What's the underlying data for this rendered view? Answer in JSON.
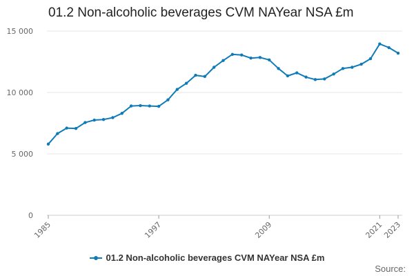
{
  "chart_data": {
    "type": "line",
    "title": "01.2 Non-alcoholic beverages CVM NAYear NSA £m",
    "xlabel": "",
    "ylabel": "",
    "ylim": [
      0,
      15000
    ],
    "yticks": [
      0,
      5000,
      10000,
      15000
    ],
    "ytick_labels": [
      "0",
      "5 000",
      "10 000",
      "15 000"
    ],
    "xlim": [
      1985,
      2023
    ],
    "xticks": [
      1985,
      1997,
      2009,
      2021,
      2023
    ],
    "xtick_labels": [
      "1985",
      "1997",
      "2009",
      "2021",
      "2023"
    ],
    "grid": true,
    "legend": "bottom",
    "color": "#0e7bb8",
    "series": [
      {
        "name": "01.2 Non-alcoholic beverages CVM NAYear NSA £m",
        "x": [
          1985,
          1986,
          1987,
          1988,
          1989,
          1990,
          1991,
          1992,
          1993,
          1994,
          1995,
          1996,
          1997,
          1998,
          1999,
          2000,
          2001,
          2002,
          2003,
          2004,
          2005,
          2006,
          2007,
          2008,
          2009,
          2010,
          2011,
          2012,
          2013,
          2014,
          2015,
          2016,
          2017,
          2018,
          2019,
          2020,
          2021,
          2022,
          2023
        ],
        "values": [
          5800,
          6650,
          7100,
          7070,
          7550,
          7750,
          7800,
          7950,
          8300,
          8900,
          8930,
          8900,
          8870,
          9400,
          10250,
          10750,
          11400,
          11300,
          12050,
          12600,
          13100,
          13050,
          12800,
          12850,
          12650,
          11950,
          11350,
          11600,
          11250,
          11050,
          11100,
          11500,
          11950,
          12050,
          12300,
          12750,
          13950,
          13650,
          13200
        ]
      }
    ]
  },
  "source_label": "Source:"
}
